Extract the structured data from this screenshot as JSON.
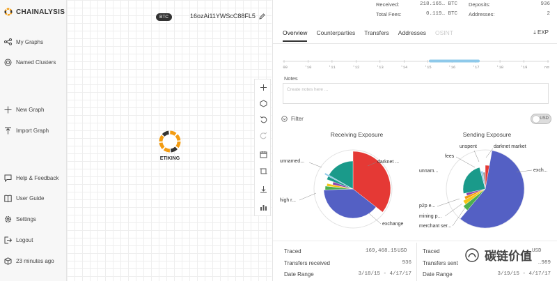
{
  "brand": {
    "name": "CHAINALYSIS"
  },
  "sidebar": {
    "items": [
      {
        "label": "My Graphs",
        "icon": "graph-icon"
      },
      {
        "label": "Named Clusters",
        "icon": "target-icon"
      },
      {
        "label": "New Graph",
        "icon": "plus-icon"
      },
      {
        "label": "Import Graph",
        "icon": "upload-icon"
      },
      {
        "label": "Help & Feedback",
        "icon": "chat-icon"
      },
      {
        "label": "User Guide",
        "icon": "book-icon"
      },
      {
        "label": "Settings",
        "icon": "gear-icon"
      },
      {
        "label": "Logout",
        "icon": "logout-icon"
      },
      {
        "label": "23 minutes ago",
        "icon": "cube-icon"
      }
    ]
  },
  "graph": {
    "currency_chip": "BTC",
    "address": "16ozAi11YWScC88FL5",
    "node_label": "ETIKING"
  },
  "stats": {
    "received_label": "Received:",
    "received_value": "218.165… BTC",
    "fees_label": "Total Fees:",
    "fees_value": "0.119… BTC",
    "deposits_label": "Deposits:",
    "deposits_value": "936",
    "addresses_label": "Addresses:",
    "addresses_value": "2"
  },
  "tabs": [
    {
      "label": "Overview",
      "state": "active"
    },
    {
      "label": "Counterparties",
      "state": "normal"
    },
    {
      "label": "Transfers",
      "state": "normal"
    },
    {
      "label": "Addresses",
      "state": "normal"
    },
    {
      "label": "OSINT",
      "state": "disabled"
    }
  ],
  "export_label": "EXP",
  "timeline": {
    "ticks": [
      "'09",
      "'10",
      "'11",
      "'12",
      "'13",
      "'14",
      "'15",
      "'16",
      "'17",
      "'18",
      "'19",
      "now"
    ],
    "selected_from": "'15",
    "selected_to": "'17"
  },
  "notes": {
    "label": "Notes",
    "placeholder": "Create notes here ..."
  },
  "filter": {
    "label": "Filter",
    "toggle_label": "USD"
  },
  "receiving": {
    "title": "Receiving Exposure",
    "labels": {
      "darknet": "darknet ...",
      "unnamed": "unnamed...",
      "high_risk": "high r...",
      "exchange": "exchange"
    }
  },
  "sending": {
    "title": "Sending Exposure",
    "labels": {
      "unspent": "unspent",
      "darknet": "darknet market",
      "fees": "fees",
      "unnamed": "unnam...",
      "exchange": "exch...",
      "p2p": "p2p e...",
      "mining": "mining p...",
      "merchant": "merchant ser..."
    }
  },
  "left_summary": {
    "traced_label": "Traced",
    "traced_value": "169,468.15",
    "traced_unit": "USD",
    "transfers_label": "Transfers received",
    "transfers_value": "936",
    "range_label": "Date Range",
    "range_value": "3/18/15 - 4/17/17"
  },
  "right_summary": {
    "traced_label": "Traced",
    "traced_value": "…",
    "traced_unit": "USD",
    "transfers_label": "Transfers sent",
    "transfers_value": "…989",
    "range_label": "Date Range",
    "range_value": "3/19/15 - 4/17/17"
  },
  "watermark": {
    "text": "碳链价值"
  },
  "colors": {
    "exchange": "#5460c4",
    "darknet": "#e53935",
    "unnamed": "#1a9a8a",
    "yellow": "#f5c518",
    "green": "#4caf50",
    "purple": "#8e44ad",
    "lightblue": "#8ec9ea",
    "orange": "#f39c12"
  }
}
